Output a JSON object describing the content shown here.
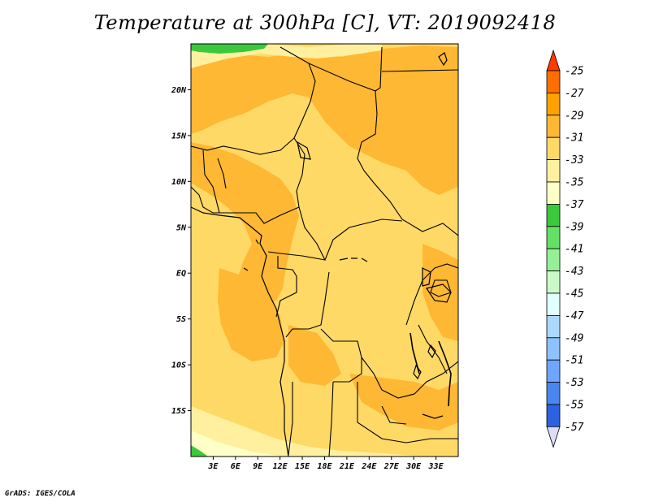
{
  "title": "Temperature at 300hPa [C], VT: 2019092418",
  "footer": "GrADS: IGES/COLA",
  "map": {
    "lon_range": [
      0,
      36
    ],
    "lat_range": [
      -20,
      25
    ],
    "lat_ticks": [
      {
        "value": 20,
        "label": "20N"
      },
      {
        "value": 15,
        "label": "15N"
      },
      {
        "value": 10,
        "label": "10N"
      },
      {
        "value": 5,
        "label": "5N"
      },
      {
        "value": 0,
        "label": "EQ"
      },
      {
        "value": -5,
        "label": "5S"
      },
      {
        "value": -10,
        "label": "10S"
      },
      {
        "value": -15,
        "label": "15S"
      }
    ],
    "lon_ticks": [
      {
        "value": 3,
        "label": "3E"
      },
      {
        "value": 6,
        "label": "6E"
      },
      {
        "value": 9,
        "label": "9E"
      },
      {
        "value": 12,
        "label": "12E"
      },
      {
        "value": 15,
        "label": "15E"
      },
      {
        "value": 18,
        "label": "18E"
      },
      {
        "value": 21,
        "label": "21E"
      },
      {
        "value": 24,
        "label": "24E"
      },
      {
        "value": 27,
        "label": "27E"
      },
      {
        "value": 30,
        "label": "30E"
      },
      {
        "value": 33,
        "label": "33E"
      }
    ]
  },
  "colorbar": {
    "levels": [
      "-25",
      "-27",
      "-29",
      "-31",
      "-33",
      "-35",
      "-37",
      "-39",
      "-41",
      "-43",
      "-45",
      "-47",
      "-49",
      "-51",
      "-53",
      "-55",
      "-57"
    ],
    "colors": [
      "#ff3a00",
      "#ff6e00",
      "#ffa100",
      "#ffb833",
      "#ffd966",
      "#fff0a0",
      "#ffffc8",
      "#3cc83c",
      "#64e164",
      "#96f096",
      "#c8fac8",
      "#e0ffff",
      "#aad8ff",
      "#8cc2ff",
      "#6ea6ff",
      "#4a86f0",
      "#2a62e0",
      "#1440c8",
      "#0a1e8c",
      "#dcdcf8"
    ]
  },
  "colors": {
    "base": "#ffd966",
    "warm": "#ffb833",
    "cool": "#fff0a0",
    "pale": "#ffffc8",
    "green": "#3cc83c",
    "light_green": "#64e164"
  }
}
